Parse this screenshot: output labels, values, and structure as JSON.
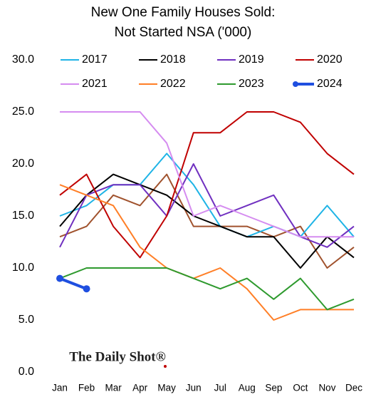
{
  "chart_data": {
    "type": "line",
    "title": [
      "New One Family Houses Sold:",
      "Not Started NSA ('000)"
    ],
    "watermark": "The Daily Shot®",
    "categories": [
      "Jan",
      "Feb",
      "Mar",
      "Apr",
      "May",
      "Jun",
      "Jul",
      "Aug",
      "Sep",
      "Oct",
      "Nov",
      "Dec"
    ],
    "ylim": [
      0,
      30
    ],
    "yticks": [
      {
        "value": 0,
        "label": "0.0"
      },
      {
        "value": 5,
        "label": "5.0"
      },
      {
        "value": 10,
        "label": "10.0"
      },
      {
        "value": 15,
        "label": "15.0"
      },
      {
        "value": 20,
        "label": "20.0"
      },
      {
        "value": 25,
        "label": "25.0"
      },
      {
        "value": 30,
        "label": "30.0"
      }
    ],
    "grid": false,
    "series": [
      {
        "color": "#a0522d",
        "values": [
          13,
          14,
          17,
          16,
          19,
          14,
          14,
          14,
          13,
          14,
          10,
          12
        ]
      },
      {
        "name": "2017",
        "color": "#1fb4e6",
        "values": [
          15,
          16,
          18,
          18,
          21,
          18,
          14,
          13,
          14,
          13,
          16,
          13
        ]
      },
      {
        "name": "2018",
        "color": "#000000",
        "values": [
          14,
          17,
          19,
          18,
          17,
          15,
          14,
          13,
          13,
          10,
          13,
          11
        ]
      },
      {
        "name": "2019",
        "color": "#7030c0",
        "values": [
          12,
          17,
          18,
          18,
          15,
          20,
          15,
          16,
          17,
          13,
          12,
          14
        ]
      },
      {
        "name": "2020",
        "color": "#c00000",
        "values": [
          17,
          19,
          14,
          11,
          15,
          23,
          23,
          25,
          25,
          24,
          21,
          19
        ]
      },
      {
        "name": "2021",
        "color": "#d58cf0",
        "values": [
          25,
          25,
          25,
          25,
          22,
          15,
          16,
          15,
          14,
          13,
          13,
          13
        ]
      },
      {
        "name": "2022",
        "color": "#ff7f27",
        "values": [
          18,
          17,
          16,
          12,
          10,
          9,
          10,
          8,
          5,
          6,
          6,
          6
        ]
      },
      {
        "name": "2023",
        "color": "#2e9a2e",
        "values": [
          9,
          10,
          10,
          10,
          10,
          9,
          8,
          9,
          7,
          9,
          6,
          7
        ]
      },
      {
        "name": "2024",
        "color": "#1f4fe0",
        "values": [
          9,
          8,
          null,
          null,
          null,
          null,
          null,
          null,
          null,
          null,
          null,
          null
        ]
      }
    ]
  }
}
